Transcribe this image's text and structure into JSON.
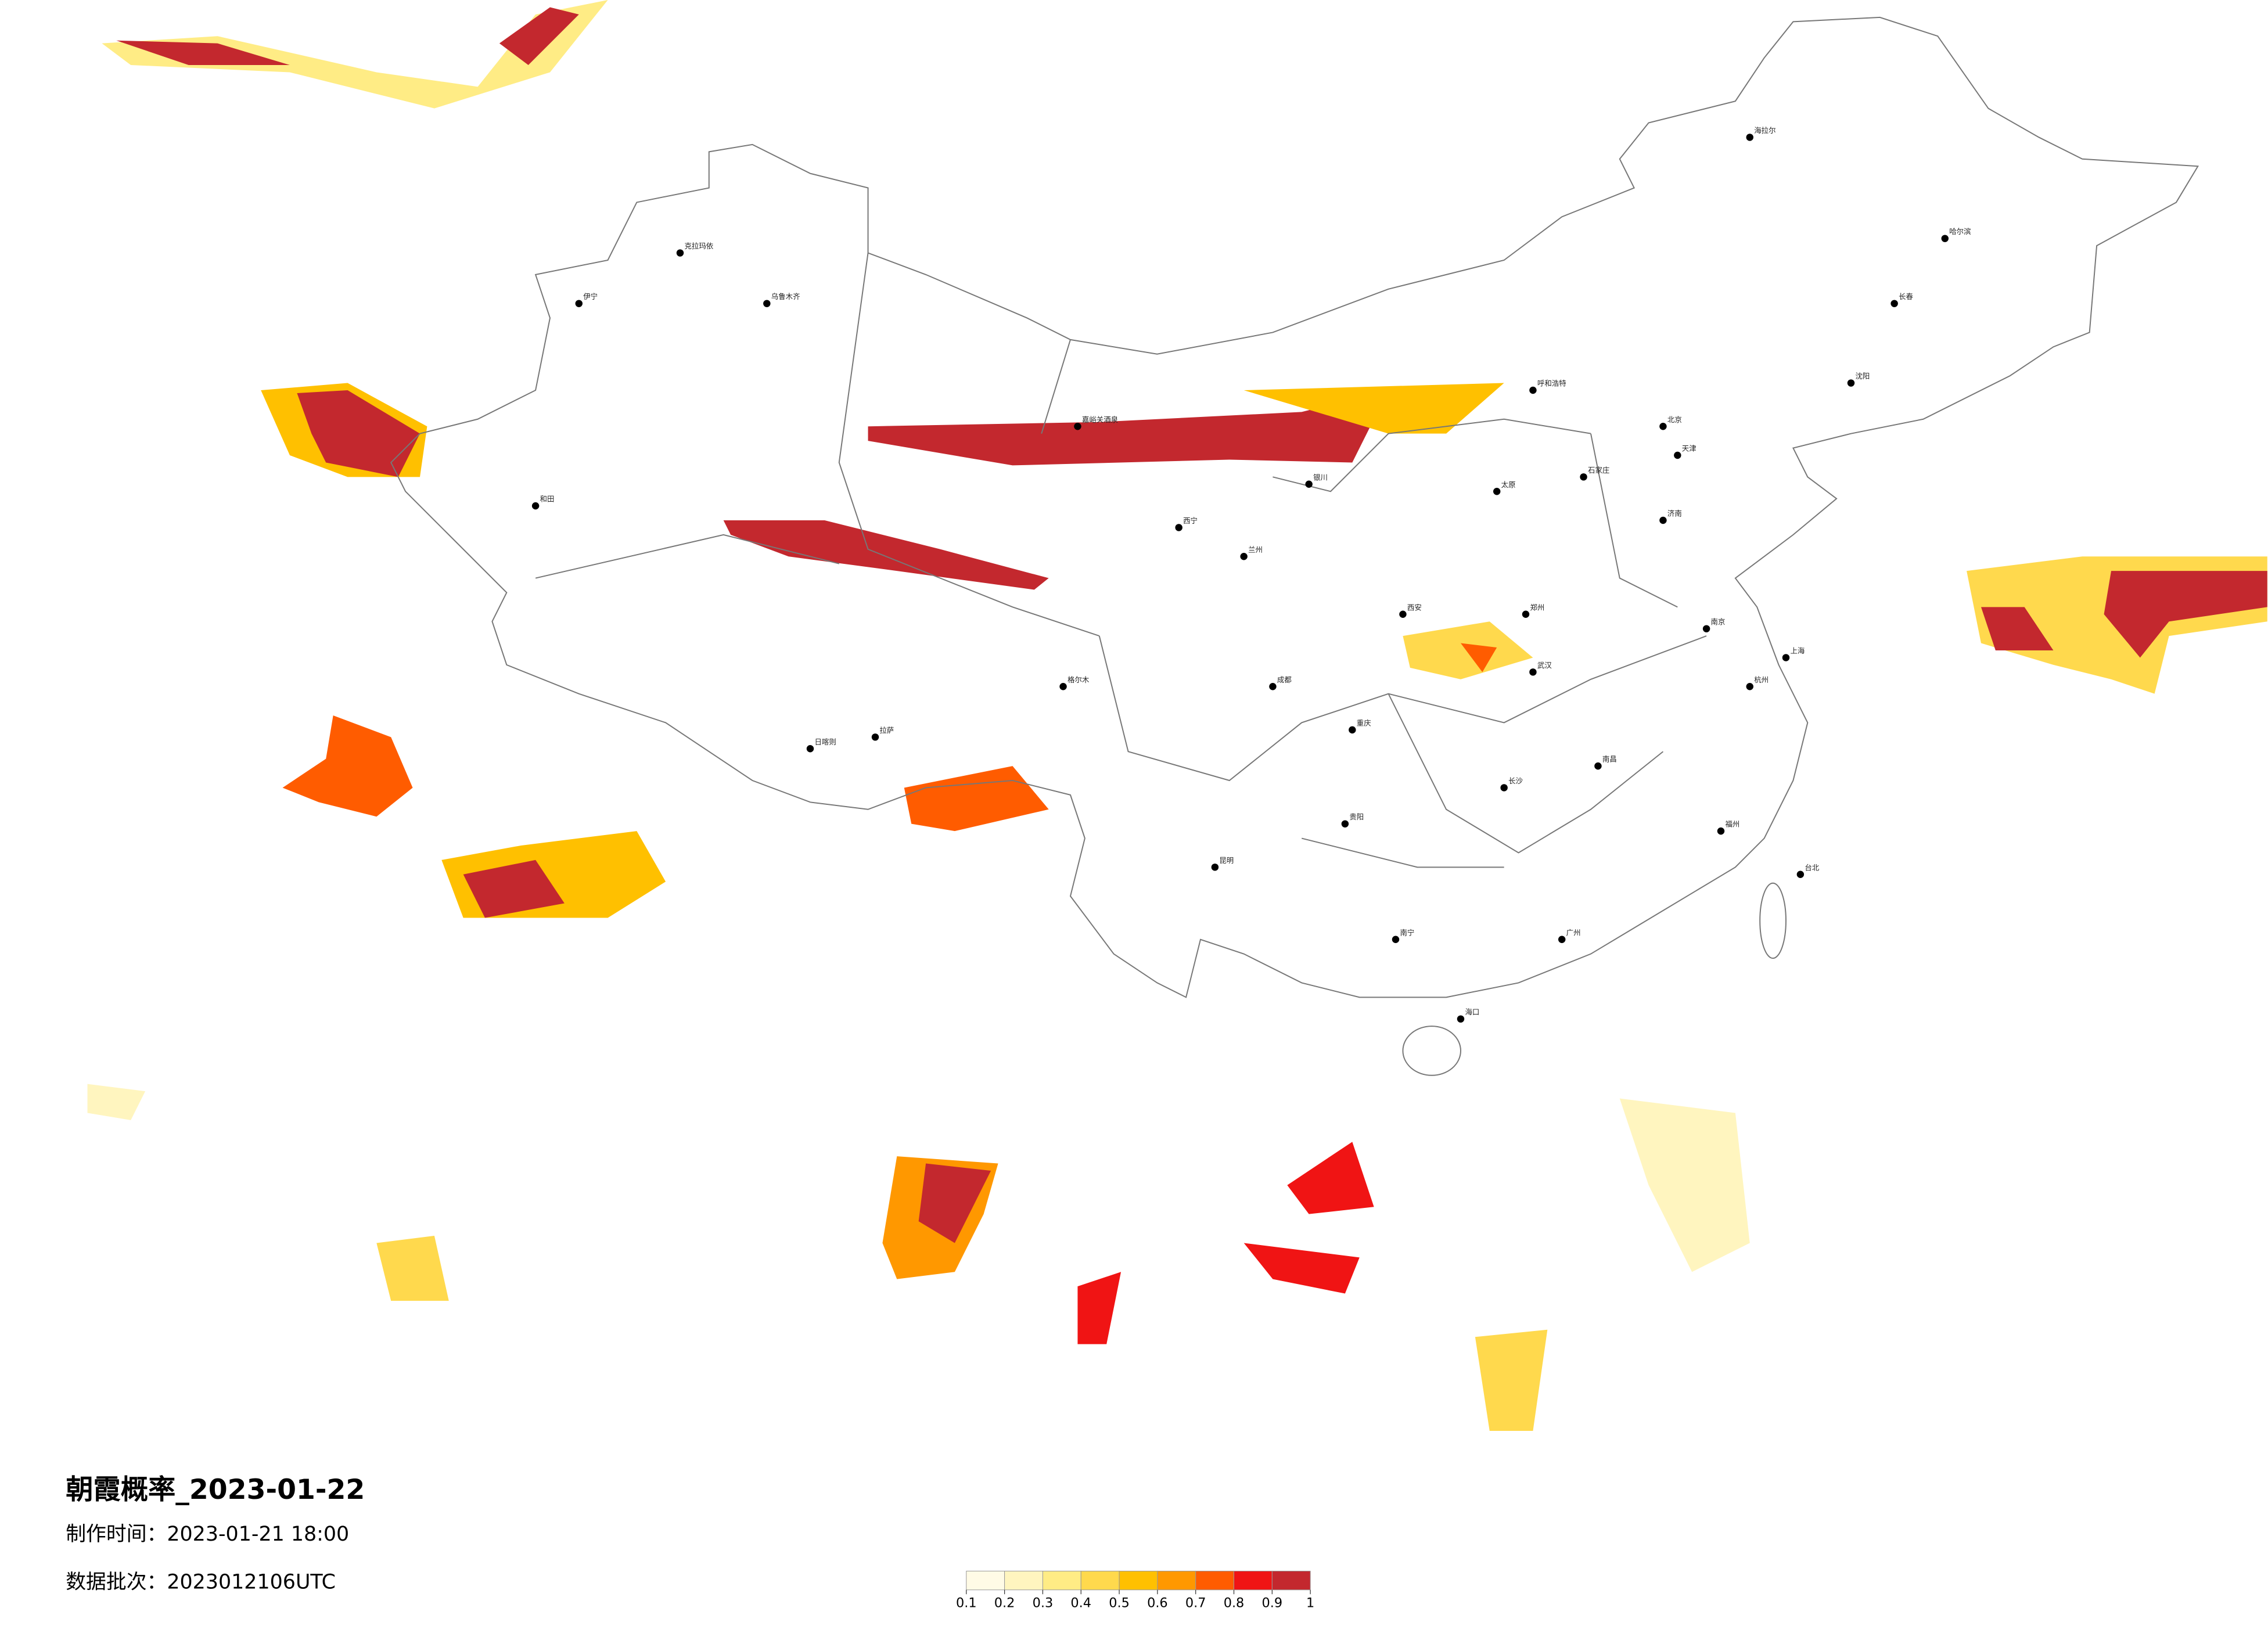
{
  "header": {
    "title": "朝霞概率_2023-01-22",
    "made": "制作时间：2023-01-21 18:00",
    "batch": "数据批次：2023012106UTC"
  },
  "legend": {
    "ticks": [
      0.1,
      0.2,
      0.3,
      0.4,
      0.5,
      0.6,
      0.7,
      0.8,
      0.9,
      1
    ],
    "colors": [
      "#fffbe6",
      "#fff5bf",
      "#ffec85",
      "#ffd94d",
      "#ffc000",
      "#ff9800",
      "#ff5c00",
      "#f01414",
      "#c3282e"
    ]
  },
  "cities": [
    "北京",
    "天津",
    "上海",
    "广州",
    "重庆",
    "成都",
    "武汉",
    "西安",
    "郑州",
    "南京",
    "杭州",
    "长沙",
    "南昌",
    "福州",
    "昆明",
    "贵阳",
    "南宁",
    "海口",
    "拉萨",
    "乌鲁木齐",
    "兰州",
    "西宁",
    "银川",
    "呼和浩特",
    "太原",
    "石家庄",
    "济南",
    "哈尔滨",
    "长春",
    "沈阳",
    "台北",
    "和田",
    "伊宁",
    "克拉玛依",
    "嘉峪关酒泉",
    "海拉尔",
    "日喀则",
    "格尔木"
  ]
}
